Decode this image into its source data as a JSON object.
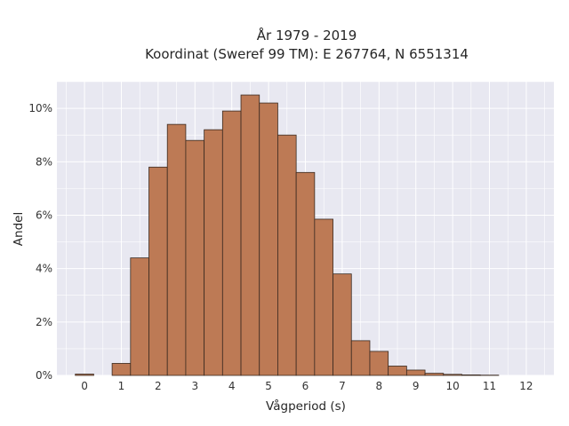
{
  "title_line1": "År 1979 - 2019",
  "title_line2": "Koordinat (Sweref 99 TM): E 267764, N 6551314",
  "colors": {
    "bar": "#bd7a55",
    "bar_edge": "#3a2a20",
    "plot_bg": "#e8e8f1",
    "grid": "#ffffff"
  },
  "chart_data": {
    "type": "bar",
    "title": "År 1979 - 2019\nKoordinat (Sweref 99 TM): E 267764, N 6551314",
    "xlabel": "Vågperiod (s)",
    "ylabel": "Andel",
    "xlim": [
      -0.75,
      12.75
    ],
    "ylim": [
      0,
      11
    ],
    "x_ticks": [
      0,
      1,
      2,
      3,
      4,
      5,
      6,
      7,
      8,
      9,
      10,
      11,
      12
    ],
    "y_ticks": [
      0,
      2,
      4,
      6,
      8,
      10
    ],
    "y_tick_labels": [
      "0%",
      "2%",
      "4%",
      "6%",
      "8%",
      "10%"
    ],
    "grid": true,
    "bin_width": 0.5,
    "bins": [
      {
        "x0": -0.25,
        "x1": 0.25,
        "value": 0.05
      },
      {
        "x0": 0.25,
        "x1": 0.75,
        "value": 0.0
      },
      {
        "x0": 0.75,
        "x1": 1.25,
        "value": 0.45
      },
      {
        "x0": 1.25,
        "x1": 1.75,
        "value": 4.4
      },
      {
        "x0": 1.75,
        "x1": 2.25,
        "value": 7.8
      },
      {
        "x0": 2.25,
        "x1": 2.75,
        "value": 9.4
      },
      {
        "x0": 2.75,
        "x1": 3.25,
        "value": 8.8
      },
      {
        "x0": 3.25,
        "x1": 3.75,
        "value": 9.2
      },
      {
        "x0": 3.75,
        "x1": 4.25,
        "value": 9.9
      },
      {
        "x0": 4.25,
        "x1": 4.75,
        "value": 10.5
      },
      {
        "x0": 4.75,
        "x1": 5.25,
        "value": 10.2
      },
      {
        "x0": 5.25,
        "x1": 5.75,
        "value": 9.0
      },
      {
        "x0": 5.75,
        "x1": 6.25,
        "value": 7.6
      },
      {
        "x0": 6.25,
        "x1": 6.75,
        "value": 5.85
      },
      {
        "x0": 6.75,
        "x1": 7.25,
        "value": 3.8
      },
      {
        "x0": 7.25,
        "x1": 7.75,
        "value": 1.3
      },
      {
        "x0": 7.75,
        "x1": 8.25,
        "value": 0.9
      },
      {
        "x0": 8.25,
        "x1": 8.75,
        "value": 0.35
      },
      {
        "x0": 8.75,
        "x1": 9.25,
        "value": 0.2
      },
      {
        "x0": 9.25,
        "x1": 9.75,
        "value": 0.08
      },
      {
        "x0": 9.75,
        "x1": 10.25,
        "value": 0.04
      },
      {
        "x0": 10.25,
        "x1": 10.75,
        "value": 0.02
      },
      {
        "x0": 10.75,
        "x1": 11.25,
        "value": 0.01
      }
    ]
  }
}
